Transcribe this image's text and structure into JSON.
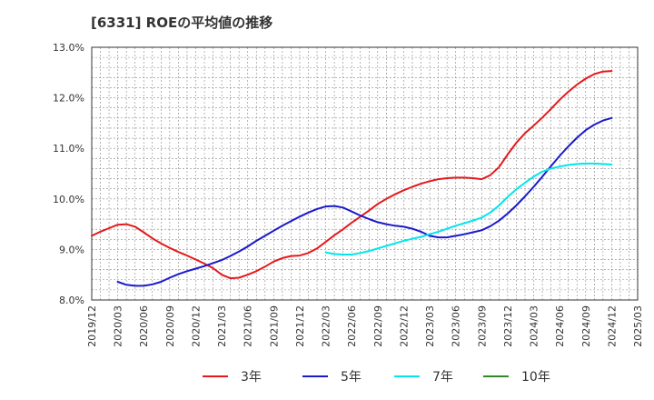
{
  "chart_data": {
    "type": "line",
    "title": "[6331]  ROEの平均値の推移",
    "xlabel": "",
    "ylabel": "",
    "ylim": [
      8.0,
      13.0
    ],
    "yticks": [
      "8.0%",
      "9.0%",
      "10.0%",
      "11.0%",
      "12.0%",
      "13.0%"
    ],
    "ytick_values": [
      8,
      9,
      10,
      11,
      12,
      13
    ],
    "xticks": [
      "2019/12",
      "2020/03",
      "2020/06",
      "2020/09",
      "2020/12",
      "2021/03",
      "2021/06",
      "2021/09",
      "2021/12",
      "2022/03",
      "2022/06",
      "2022/09",
      "2022/12",
      "2023/03",
      "2023/06",
      "2023/09",
      "2023/12",
      "2024/03",
      "2024/06",
      "2024/09",
      "2024/12",
      "2025/03"
    ],
    "grid": true,
    "legend_position": "bottom",
    "series": [
      {
        "name": "3年",
        "color": "#e31a1c",
        "points": [
          [
            "2019/12",
            9.27
          ],
          [
            "2020/01",
            9.35
          ],
          [
            "2020/02",
            9.42
          ],
          [
            "2020/03",
            9.49
          ],
          [
            "2020/04",
            9.5
          ],
          [
            "2020/05",
            9.45
          ],
          [
            "2020/06",
            9.34
          ],
          [
            "2020/07",
            9.22
          ],
          [
            "2020/08",
            9.12
          ],
          [
            "2020/09",
            9.03
          ],
          [
            "2020/10",
            8.95
          ],
          [
            "2020/11",
            8.88
          ],
          [
            "2020/12",
            8.8
          ],
          [
            "2021/01",
            8.72
          ],
          [
            "2021/02",
            8.63
          ],
          [
            "2021/03",
            8.5
          ],
          [
            "2021/04",
            8.43
          ],
          [
            "2021/05",
            8.44
          ],
          [
            "2021/06",
            8.5
          ],
          [
            "2021/07",
            8.57
          ],
          [
            "2021/08",
            8.66
          ],
          [
            "2021/09",
            8.76
          ],
          [
            "2021/10",
            8.83
          ],
          [
            "2021/11",
            8.87
          ],
          [
            "2021/12",
            8.88
          ],
          [
            "2022/01",
            8.93
          ],
          [
            "2022/02",
            9.02
          ],
          [
            "2022/03",
            9.15
          ],
          [
            "2022/04",
            9.28
          ],
          [
            "2022/05",
            9.4
          ],
          [
            "2022/06",
            9.53
          ],
          [
            "2022/07",
            9.65
          ],
          [
            "2022/08",
            9.77
          ],
          [
            "2022/09",
            9.9
          ],
          [
            "2022/10",
            10.0
          ],
          [
            "2022/11",
            10.09
          ],
          [
            "2022/12",
            10.17
          ],
          [
            "2023/01",
            10.24
          ],
          [
            "2023/02",
            10.3
          ],
          [
            "2023/03",
            10.35
          ],
          [
            "2023/04",
            10.39
          ],
          [
            "2023/05",
            10.41
          ],
          [
            "2023/06",
            10.42
          ],
          [
            "2023/07",
            10.42
          ],
          [
            "2023/08",
            10.41
          ],
          [
            "2023/09",
            10.39
          ],
          [
            "2023/10",
            10.47
          ],
          [
            "2023/11",
            10.63
          ],
          [
            "2023/12",
            10.88
          ],
          [
            "2024/01",
            11.11
          ],
          [
            "2024/02",
            11.3
          ],
          [
            "2024/03",
            11.45
          ],
          [
            "2024/04",
            11.61
          ],
          [
            "2024/05",
            11.78
          ],
          [
            "2024/06",
            11.96
          ],
          [
            "2024/07",
            12.12
          ],
          [
            "2024/08",
            12.26
          ],
          [
            "2024/09",
            12.38
          ],
          [
            "2024/10",
            12.47
          ],
          [
            "2024/11",
            12.52
          ],
          [
            "2024/12",
            12.53
          ]
        ]
      },
      {
        "name": "5年",
        "color": "#1a1acc",
        "points": [
          [
            "2020/03",
            8.36
          ],
          [
            "2020/04",
            8.3
          ],
          [
            "2020/05",
            8.28
          ],
          [
            "2020/06",
            8.28
          ],
          [
            "2020/07",
            8.31
          ],
          [
            "2020/08",
            8.36
          ],
          [
            "2020/09",
            8.44
          ],
          [
            "2020/10",
            8.51
          ],
          [
            "2020/11",
            8.57
          ],
          [
            "2020/12",
            8.62
          ],
          [
            "2021/01",
            8.67
          ],
          [
            "2021/02",
            8.73
          ],
          [
            "2021/03",
            8.79
          ],
          [
            "2021/04",
            8.87
          ],
          [
            "2021/05",
            8.96
          ],
          [
            "2021/06",
            9.06
          ],
          [
            "2021/07",
            9.17
          ],
          [
            "2021/08",
            9.27
          ],
          [
            "2021/09",
            9.37
          ],
          [
            "2021/10",
            9.47
          ],
          [
            "2021/11",
            9.56
          ],
          [
            "2021/12",
            9.65
          ],
          [
            "2022/01",
            9.73
          ],
          [
            "2022/02",
            9.8
          ],
          [
            "2022/03",
            9.85
          ],
          [
            "2022/04",
            9.86
          ],
          [
            "2022/05",
            9.83
          ],
          [
            "2022/06",
            9.75
          ],
          [
            "2022/07",
            9.67
          ],
          [
            "2022/08",
            9.6
          ],
          [
            "2022/09",
            9.54
          ],
          [
            "2022/10",
            9.5
          ],
          [
            "2022/11",
            9.47
          ],
          [
            "2022/12",
            9.45
          ],
          [
            "2023/01",
            9.41
          ],
          [
            "2023/02",
            9.35
          ],
          [
            "2023/03",
            9.27
          ],
          [
            "2023/04",
            9.24
          ],
          [
            "2023/05",
            9.24
          ],
          [
            "2023/06",
            9.27
          ],
          [
            "2023/07",
            9.3
          ],
          [
            "2023/08",
            9.34
          ],
          [
            "2023/09",
            9.38
          ],
          [
            "2023/10",
            9.46
          ],
          [
            "2023/11",
            9.57
          ],
          [
            "2023/12",
            9.71
          ],
          [
            "2024/01",
            9.87
          ],
          [
            "2024/02",
            10.05
          ],
          [
            "2024/03",
            10.24
          ],
          [
            "2024/04",
            10.44
          ],
          [
            "2024/05",
            10.65
          ],
          [
            "2024/06",
            10.85
          ],
          [
            "2024/07",
            11.04
          ],
          [
            "2024/08",
            11.21
          ],
          [
            "2024/09",
            11.36
          ],
          [
            "2024/10",
            11.47
          ],
          [
            "2024/11",
            11.55
          ],
          [
            "2024/12",
            11.6
          ]
        ]
      },
      {
        "name": "7年",
        "color": "#00e5ee",
        "points": [
          [
            "2022/03",
            8.94
          ],
          [
            "2022/04",
            8.91
          ],
          [
            "2022/05",
            8.9
          ],
          [
            "2022/06",
            8.9
          ],
          [
            "2022/07",
            8.93
          ],
          [
            "2022/08",
            8.97
          ],
          [
            "2022/09",
            9.02
          ],
          [
            "2022/10",
            9.07
          ],
          [
            "2022/11",
            9.12
          ],
          [
            "2022/12",
            9.17
          ],
          [
            "2023/01",
            9.21
          ],
          [
            "2023/02",
            9.25
          ],
          [
            "2023/03",
            9.3
          ],
          [
            "2023/04",
            9.35
          ],
          [
            "2023/05",
            9.41
          ],
          [
            "2023/06",
            9.47
          ],
          [
            "2023/07",
            9.52
          ],
          [
            "2023/08",
            9.57
          ],
          [
            "2023/09",
            9.63
          ],
          [
            "2023/10",
            9.73
          ],
          [
            "2023/11",
            9.87
          ],
          [
            "2023/12",
            10.04
          ],
          [
            "2024/01",
            10.19
          ],
          [
            "2024/02",
            10.32
          ],
          [
            "2024/03",
            10.44
          ],
          [
            "2024/04",
            10.54
          ],
          [
            "2024/05",
            10.6
          ],
          [
            "2024/06",
            10.64
          ],
          [
            "2024/07",
            10.67
          ],
          [
            "2024/08",
            10.69
          ],
          [
            "2024/09",
            10.7
          ],
          [
            "2024/10",
            10.7
          ],
          [
            "2024/11",
            10.69
          ],
          [
            "2024/12",
            10.68
          ]
        ]
      },
      {
        "name": "10年",
        "color": "#2e8b22",
        "points": []
      }
    ]
  }
}
